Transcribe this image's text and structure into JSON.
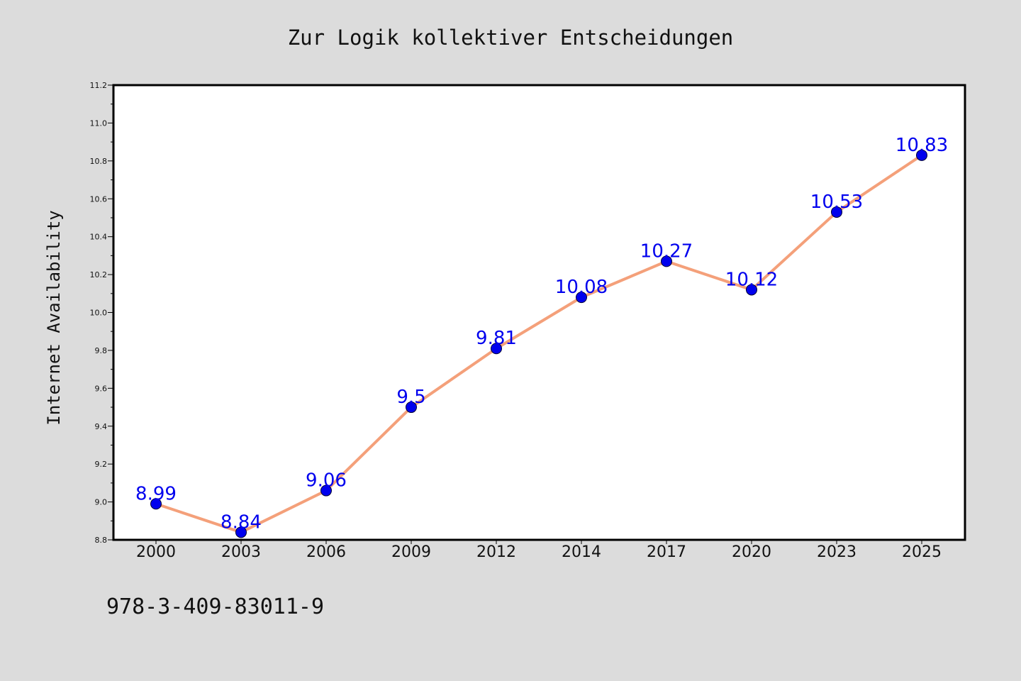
{
  "chart_data": {
    "type": "line",
    "title": "Zur Logik kollektiver Entscheidungen",
    "xlabel": "",
    "ylabel": "Internet Availability",
    "categories": [
      "2000",
      "2003",
      "2006",
      "2009",
      "2012",
      "2014",
      "2017",
      "2020",
      "2023",
      "2025"
    ],
    "series": [
      {
        "values": [
          8.99,
          8.84,
          9.06,
          9.5,
          9.81,
          10.08,
          10.27,
          10.12,
          10.53,
          10.83
        ],
        "labels": [
          "8.99",
          "8.84",
          "9.06",
          "9.5",
          "9.81",
          "10.08",
          "10.27",
          "10.12",
          "10.53",
          "10.83"
        ],
        "line_color": "#f4a07a",
        "marker_color": "#0000ee",
        "label_color": "#0000ee"
      }
    ],
    "ylim": [
      8.8,
      11.2
    ],
    "yticks": [
      "8.8",
      "9.0",
      "9.2",
      "9.4",
      "9.6",
      "9.8",
      "10.0",
      "10.2",
      "10.4",
      "10.6",
      "10.8",
      "11.0",
      "11.2"
    ],
    "grid": false,
    "legend": "none"
  },
  "footer": {
    "isbn": "978-3-409-83011-9"
  },
  "colors": {
    "background": "#dcdcdc",
    "plot_background": "#ffffff",
    "axis": "#000000"
  }
}
